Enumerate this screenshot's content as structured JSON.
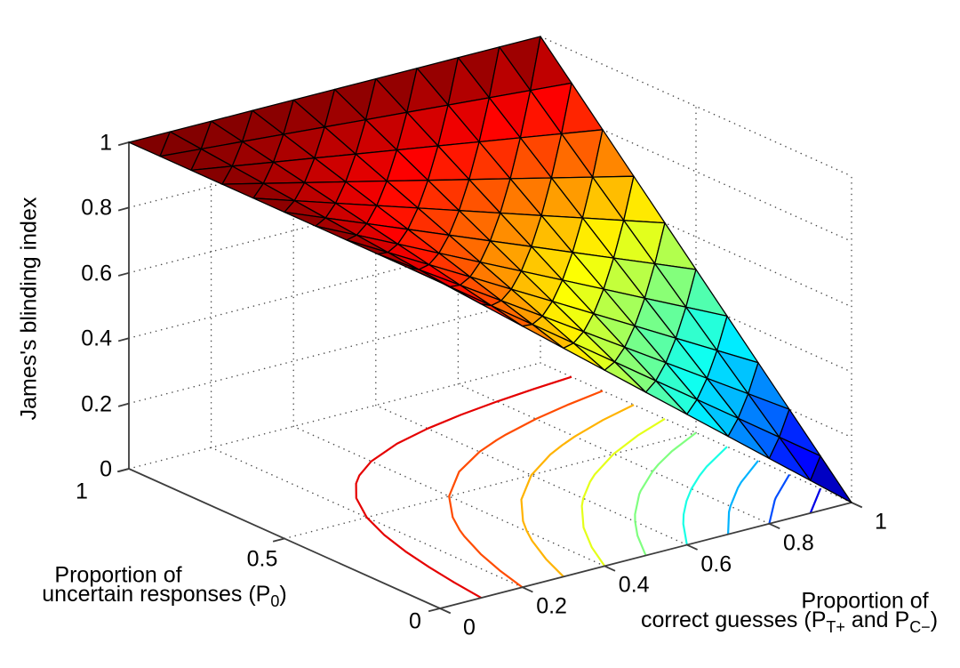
{
  "figure": {
    "zlabel": "James's blinding index",
    "ylabel": {
      "line1": "Proportion of",
      "line2_pre": "uncertain responses (P",
      "line2_sub": "0",
      "line2_post": ")"
    },
    "xlabel": {
      "line1": "Proportion of",
      "line2_pre": "correct guesses (P",
      "line2_sub1": "T+",
      "line2_mid": " and P",
      "line2_sub2": "C−",
      "line2_post": ")"
    }
  },
  "chart_data": {
    "type": "surface3d_with_floor_contours",
    "title": "",
    "xlabel": "Proportion of correct guesses (P_T+ and P_C-)",
    "ylabel": "Proportion of uncertain responses (P_0)",
    "zlabel": "James's blinding index",
    "surface_formula": "BI = 1 - Pc*(1 - P0)",
    "colormap": "jet",
    "xlim": [
      0,
      1
    ],
    "ylim": [
      0,
      1
    ],
    "zlim": [
      0,
      1
    ],
    "x": [
      0,
      0.1,
      0.2,
      0.3,
      0.4,
      0.5,
      0.6,
      0.7,
      0.8,
      0.9,
      1
    ],
    "y": [
      0,
      0.1,
      0.2,
      0.3,
      0.4,
      0.5,
      0.6,
      0.7,
      0.8,
      0.9,
      1
    ],
    "z_values": [
      [
        1,
        0.9,
        0.8,
        0.7,
        0.6,
        0.5,
        0.4,
        0.3,
        0.2,
        0.1,
        0.0
      ],
      [
        1,
        0.91,
        0.82,
        0.73,
        0.64,
        0.55,
        0.46,
        0.37,
        0.28,
        0.19,
        0.1
      ],
      [
        1,
        0.92,
        0.84,
        0.76,
        0.68,
        0.6,
        0.52,
        0.44,
        0.36,
        0.28,
        0.2
      ],
      [
        1,
        0.93,
        0.86,
        0.79,
        0.72,
        0.65,
        0.58,
        0.51,
        0.44,
        0.37,
        0.3
      ],
      [
        1,
        0.94,
        0.88,
        0.82,
        0.76,
        0.7,
        0.64,
        0.58,
        0.52,
        0.46,
        0.4
      ],
      [
        1,
        0.95,
        0.9,
        0.85,
        0.8,
        0.75,
        0.7,
        0.65,
        0.6,
        0.55,
        0.5
      ],
      [
        1,
        0.96,
        0.92,
        0.88,
        0.84,
        0.8,
        0.76,
        0.72,
        0.68,
        0.64,
        0.6
      ],
      [
        1,
        0.97,
        0.94,
        0.91,
        0.88,
        0.85,
        0.82,
        0.79,
        0.76,
        0.73,
        0.7
      ],
      [
        1,
        0.98,
        0.96,
        0.94,
        0.92,
        0.9,
        0.88,
        0.86,
        0.84,
        0.82,
        0.8
      ],
      [
        1,
        0.99,
        0.98,
        0.97,
        0.96,
        0.95,
        0.94,
        0.93,
        0.92,
        0.91,
        0.9
      ],
      [
        1,
        1.0,
        1.0,
        1.0,
        1.0,
        1.0,
        1.0,
        1.0,
        1.0,
        1.0,
        1.0
      ]
    ],
    "contour_levels": [
      0.1,
      0.2,
      0.3,
      0.4,
      0.5,
      0.6,
      0.7,
      0.8,
      0.9
    ],
    "x_ticks": {
      "values": [
        0,
        0.2,
        0.4,
        0.6,
        0.8,
        1
      ],
      "labels": [
        "0",
        "0.2",
        "0.4",
        "0.6",
        "0.8",
        "1"
      ]
    },
    "y_ticks": {
      "values": [
        0,
        0.5,
        1
      ],
      "labels": [
        "0",
        "0.5",
        "1"
      ]
    },
    "z_ticks": {
      "values": [
        0,
        0.2,
        0.4,
        0.6,
        0.8,
        1
      ],
      "labels": [
        "0",
        "0.2",
        "0.4",
        "0.6",
        "0.8",
        "1"
      ]
    },
    "grid": "dotted",
    "legend": "none"
  }
}
